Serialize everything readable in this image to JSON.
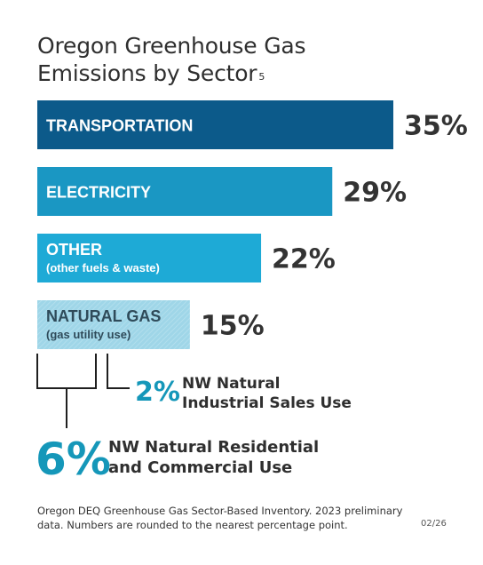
{
  "title_line1": "Oregon Greenhouse Gas",
  "title_line2": "Emissions by Sector",
  "title_superscript": "5",
  "chart_data": {
    "type": "bar",
    "orientation": "horizontal",
    "unit": "%",
    "categories": [
      "TRANSPORTATION",
      "ELECTRICITY",
      "OTHER",
      "NATURAL GAS"
    ],
    "sublabels": [
      "",
      "",
      "(other fuels & waste)",
      "(gas utility use)"
    ],
    "values": [
      35,
      29,
      22,
      15
    ],
    "value_labels": [
      "35%",
      "29%",
      "22%",
      "15%"
    ],
    "colors": [
      "#0c5a8a",
      "#1a97c3",
      "#1eaad6",
      "#9fd6e8"
    ],
    "breakdown": {
      "parent": "NATURAL GAS",
      "items": [
        {
          "value": 2,
          "label": "2%",
          "text_line1": "NW Natural",
          "text_line2": "Industrial Sales Use"
        },
        {
          "value": 6,
          "label": "6%",
          "text_line1": "NW Natural Residential",
          "text_line2": "and Commercial Use"
        }
      ]
    }
  },
  "footnote": "Oregon DEQ Greenhouse Gas Sector-Based Inventory. 2023 preliminary data. Numbers are rounded to the nearest percentage point.",
  "date_code": "02/26"
}
